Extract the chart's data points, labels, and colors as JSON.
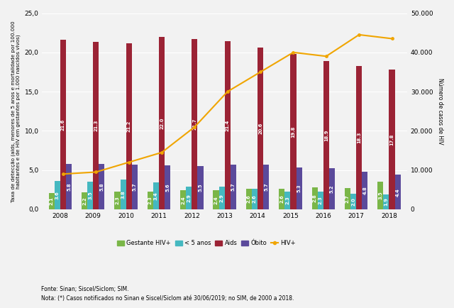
{
  "years": [
    2008,
    2009,
    2010,
    2011,
    2012,
    2013,
    2014,
    2015,
    2016,
    2017,
    2018
  ],
  "gestante": [
    2.1,
    2.2,
    2.3,
    2.3,
    2.4,
    2.4,
    2.6,
    2.6,
    2.8,
    2.7,
    3.5
  ],
  "menos5anos": [
    3.6,
    3.5,
    3.8,
    3.4,
    2.9,
    2.9,
    2.6,
    2.3,
    2.3,
    2.0,
    1.9
  ],
  "aids": [
    21.6,
    21.3,
    21.2,
    22.0,
    21.7,
    21.4,
    20.6,
    19.8,
    18.9,
    18.3,
    17.8
  ],
  "obito": [
    5.8,
    5.8,
    5.7,
    5.6,
    5.5,
    5.7,
    5.7,
    5.3,
    5.2,
    4.8,
    4.4
  ],
  "hivplus": [
    9000,
    9500,
    12000,
    14500,
    21000,
    30000,
    35000,
    40000,
    39000,
    44500,
    43500
  ],
  "gestante_labels": [
    "2.1",
    "2.2",
    "2.3",
    "2.3",
    "2.4",
    "2.4",
    "2.6",
    "2.6",
    "2.8",
    "2.7",
    "3.5"
  ],
  "menos5anos_labels": [
    "3.6",
    "3.5",
    "3.8",
    "3.4",
    "2.9",
    "2.9",
    "2.6",
    "2.3",
    "2.3",
    "2.0",
    "1.9"
  ],
  "aids_labels": [
    "21.6",
    "21.3",
    "21.2",
    "22.0",
    "21.7",
    "21.4",
    "20.6",
    "19.8",
    "18.9",
    "18.3",
    "17.8"
  ],
  "obito_labels": [
    "5.8",
    "5.8",
    "5.7",
    "5.6",
    "5.5",
    "5.7",
    "5.7",
    "5.3",
    "5.2",
    "4.8",
    "4.4"
  ],
  "color_gestante": "#7ab648",
  "color_menos5anos": "#45b8c0",
  "color_aids": "#9b2335",
  "color_obito": "#5b4a9b",
  "color_hivplus": "#f0a500",
  "ylabel_left": "Taxa de detecção (aids, menores de 5 anos e mortalidade por 100.000\nhabitantes e de HIV em gestantes por 1.000 nascidos vivos)",
  "ylabel_right": "Número de casos de HIV",
  "ylim_left": [
    0,
    25
  ],
  "ylim_right": [
    0,
    50000
  ],
  "yticks_left": [
    0.0,
    5.0,
    10.0,
    15.0,
    20.0,
    25.0
  ],
  "yticks_right": [
    0,
    10000,
    20000,
    30000,
    40000,
    50000
  ],
  "yticks_right_labels": [
    "0",
    "10.000",
    "20.000",
    "30.000",
    "40.000",
    "50.000"
  ],
  "yticks_left_labels": [
    "0,0",
    "5,0",
    "10,0",
    "15,0",
    "20,0",
    "25,0"
  ],
  "legend_labels": [
    "Gestante HIV+",
    "< 5 anos",
    "Aids",
    "Óbito",
    "HIV+"
  ],
  "footnote1": "Fonte: Sinan; Siscel/Siclom; SIM.",
  "footnote2": "Nota: (*) Casos notificados no Sinan e Siscel/Siclom até 30/06/2019; no SIM, de 2000 a 2018.",
  "background_color": "#f2f2f2"
}
